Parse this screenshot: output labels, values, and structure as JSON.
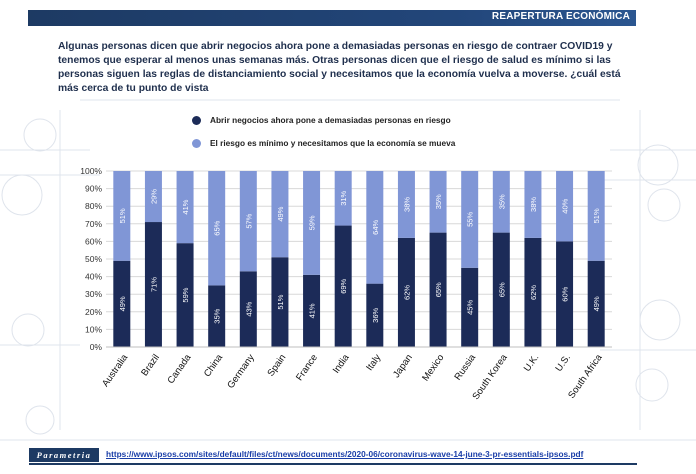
{
  "header": {
    "banner_label": "REAPERTURA ECONÓMICA"
  },
  "question": "Algunas personas dicen que abrir negocios ahora pone a demasiadas personas en riesgo de contraer COVID19 y tenemos que esperar al menos unas semanas más. Otras personas dicen que el riesgo de salud es mínimo si las personas siguen las reglas de distanciamiento social y necesitamos que la economía vuelva a moverse. ¿cuál está más cerca de tu punto de vista",
  "legend": [
    {
      "label": "Abrir negocios ahora pone a demasiadas personas en riesgo",
      "color": "#1c2b58"
    },
    {
      "label": "El riesgo es mínimo y necesitamos que la economía se mueva",
      "color": "#8096d6"
    }
  ],
  "chart_data": {
    "type": "bar",
    "stacked": true,
    "categories": [
      "Australia",
      "Brazil",
      "Canada",
      "China",
      "Germany",
      "Spain",
      "France",
      "India",
      "Italy",
      "Japan",
      "Mexico",
      "Russia",
      "South Korea",
      "U.K.",
      "U.S.",
      "South Africa"
    ],
    "series": [
      {
        "name": "Abrir negocios ahora pone a demasiadas personas en riesgo",
        "color": "#1c2b58",
        "values": [
          49,
          71,
          59,
          35,
          43,
          51,
          41,
          69,
          36,
          62,
          65,
          45,
          65,
          62,
          60,
          49
        ]
      },
      {
        "name": "El riesgo es mínimo y necesitamos que la economía se mueva",
        "color": "#8096d6",
        "values": [
          51,
          29,
          41,
          65,
          57,
          49,
          59,
          31,
          64,
          38,
          35,
          55,
          35,
          38,
          40,
          51
        ]
      }
    ],
    "data_labels": [
      [
        "49%",
        "71%",
        "59%",
        "35%",
        "43%",
        "51%",
        "41%",
        "69%",
        "36%",
        "62%",
        "65%",
        "45%",
        "65%",
        "62%",
        "60%",
        "49%"
      ],
      [
        "51%",
        "29%",
        "41%",
        "65%",
        "57%",
        "49%",
        "59%",
        "31%",
        "64%",
        "38%",
        "35%",
        "55%",
        "35%",
        "38%",
        "40%",
        "51%"
      ]
    ],
    "yticks": [
      "0%",
      "10%",
      "20%",
      "30%",
      "40%",
      "50%",
      "60%",
      "70%",
      "80%",
      "90%",
      "100%"
    ],
    "ylim": [
      0,
      100
    ],
    "grid": true,
    "legend_position": "top-left"
  },
  "footer": {
    "brand": "Parametria",
    "url": "https://www.ipsos.com/sites/default/files/ct/news/documents/2020-06/coronavirus-wave-14-june-3-pr-essentials-ipsos.pdf"
  }
}
